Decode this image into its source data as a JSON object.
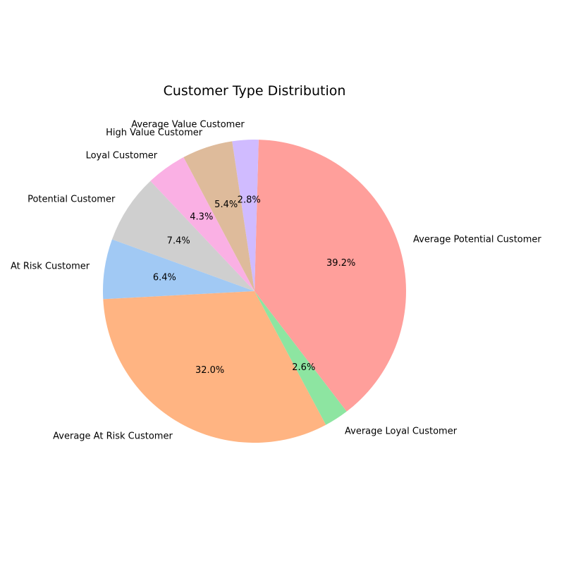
{
  "chart_data": {
    "type": "pie",
    "title": "Customer Type Distribution",
    "start_angle_deg": 160,
    "direction": "counterclockwise",
    "slices": [
      {
        "label": "At Risk Customer",
        "value": 6.4,
        "pct_label": "6.4%",
        "color": "#a1c9f4"
      },
      {
        "label": "Average At Risk Customer",
        "value": 32.0,
        "pct_label": "32.0%",
        "color": "#ffb482"
      },
      {
        "label": "Average Loyal Customer",
        "value": 2.6,
        "pct_label": "2.6%",
        "color": "#8de5a1"
      },
      {
        "label": "Average Potential Customer",
        "value": 39.2,
        "pct_label": "39.2%",
        "color": "#ff9f9b"
      },
      {
        "label": "Average Value Customer",
        "value": 2.8,
        "pct_label": "2.8%",
        "color": "#d0bbff"
      },
      {
        "label": "High Value Customer",
        "value": 5.4,
        "pct_label": "5.4%",
        "color": "#debb9b"
      },
      {
        "label": "Loyal Customer",
        "value": 4.3,
        "pct_label": "4.3%",
        "color": "#fab0e4"
      },
      {
        "label": "Potential Customer",
        "value": 7.4,
        "pct_label": "7.4%",
        "color": "#cfcfcf"
      }
    ]
  }
}
